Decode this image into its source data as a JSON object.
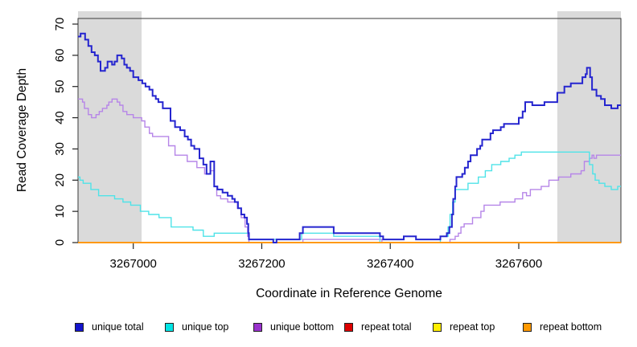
{
  "figure": {
    "y_axis_title": "Read Coverage Depth",
    "x_axis_title": "Coordinate in Reference Genome"
  },
  "chart_data": {
    "type": "line",
    "subtype": "step",
    "title": "",
    "xlabel": "Coordinate in Reference Genome",
    "ylabel": "Read Coverage Depth",
    "xlim": [
      3266914,
      3267759
    ],
    "ylim": [
      0,
      71.8
    ],
    "x_ticks": [
      3267000,
      3267200,
      3267400,
      3267600
    ],
    "y_ticks": [
      0,
      10,
      20,
      30,
      40,
      50,
      60,
      70
    ],
    "grid": false,
    "legend_position": "bottom",
    "shaded_regions": [
      {
        "x0": 3266914,
        "x1": 3267013,
        "color": "#DADADA"
      },
      {
        "x0": 3267660,
        "x1": 3267759,
        "color": "#DADADA"
      }
    ],
    "series": [
      {
        "name": "unique total",
        "color": "#1414CC",
        "line_color": "#2525CF",
        "line_width": 2,
        "draw_order": 6,
        "values": [
          [
            3266914,
            66
          ],
          [
            3266918,
            67
          ],
          [
            3266925,
            65
          ],
          [
            3266930,
            63
          ],
          [
            3266935,
            61
          ],
          [
            3266940,
            60
          ],
          [
            3266945,
            58
          ],
          [
            3266949,
            55
          ],
          [
            3266956,
            56
          ],
          [
            3266960,
            58
          ],
          [
            3266967,
            57
          ],
          [
            3266971,
            58
          ],
          [
            3266975,
            60
          ],
          [
            3266982,
            59
          ],
          [
            3266986,
            57
          ],
          [
            3266990,
            56
          ],
          [
            3266995,
            55
          ],
          [
            3267000,
            53
          ],
          [
            3267008,
            52
          ],
          [
            3267014,
            51
          ],
          [
            3267019,
            50
          ],
          [
            3267025,
            49
          ],
          [
            3267030,
            47
          ],
          [
            3267035,
            46
          ],
          [
            3267039,
            45
          ],
          [
            3267046,
            43
          ],
          [
            3267058,
            39
          ],
          [
            3267065,
            37
          ],
          [
            3267073,
            36
          ],
          [
            3267080,
            34
          ],
          [
            3267085,
            33
          ],
          [
            3267090,
            31
          ],
          [
            3267095,
            30
          ],
          [
            3267103,
            27
          ],
          [
            3267109,
            25
          ],
          [
            3267114,
            22
          ],
          [
            3267120,
            26
          ],
          [
            3267126,
            18
          ],
          [
            3267131,
            17
          ],
          [
            3267139,
            16
          ],
          [
            3267147,
            15
          ],
          [
            3267154,
            14
          ],
          [
            3267158,
            13
          ],
          [
            3267163,
            11
          ],
          [
            3267168,
            9
          ],
          [
            3267173,
            8
          ],
          [
            3267177,
            6
          ],
          [
            3267179,
            3
          ],
          [
            3267180,
            1
          ],
          [
            3267218,
            0
          ],
          [
            3267223,
            1
          ],
          [
            3267259,
            3
          ],
          [
            3267264,
            5
          ],
          [
            3267312,
            3
          ],
          [
            3267384,
            2
          ],
          [
            3267389,
            1
          ],
          [
            3267421,
            2
          ],
          [
            3267440,
            1
          ],
          [
            3267478,
            2
          ],
          [
            3267488,
            3
          ],
          [
            3267492,
            5
          ],
          [
            3267496,
            9
          ],
          [
            3267498,
            14
          ],
          [
            3267501,
            18
          ],
          [
            3267503,
            21
          ],
          [
            3267512,
            22
          ],
          [
            3267516,
            24
          ],
          [
            3267521,
            26
          ],
          [
            3267525,
            28
          ],
          [
            3267535,
            30
          ],
          [
            3267540,
            31
          ],
          [
            3267543,
            33
          ],
          [
            3267556,
            35
          ],
          [
            3267560,
            36
          ],
          [
            3267572,
            37
          ],
          [
            3267577,
            38
          ],
          [
            3267600,
            40
          ],
          [
            3267606,
            42
          ],
          [
            3267610,
            45
          ],
          [
            3267621,
            44
          ],
          [
            3267640,
            45
          ],
          [
            3267660,
            48
          ],
          [
            3267671,
            50
          ],
          [
            3267681,
            51
          ],
          [
            3267699,
            53
          ],
          [
            3267704,
            54
          ],
          [
            3267706,
            56
          ],
          [
            3267711,
            53
          ],
          [
            3267714,
            49
          ],
          [
            3267721,
            47
          ],
          [
            3267728,
            46
          ],
          [
            3267734,
            44
          ],
          [
            3267744,
            43
          ],
          [
            3267754,
            44
          ],
          [
            3267759,
            44
          ]
        ]
      },
      {
        "name": "unique top",
        "color": "#00E5E5",
        "line_color": "#4FE3E8",
        "line_width": 1.4,
        "draw_order": 4,
        "values": [
          [
            3266914,
            21
          ],
          [
            3266917,
            20
          ],
          [
            3266922,
            19
          ],
          [
            3266934,
            17
          ],
          [
            3266946,
            15
          ],
          [
            3266971,
            14
          ],
          [
            3266984,
            13
          ],
          [
            3266996,
            12
          ],
          [
            3267011,
            10
          ],
          [
            3267024,
            9
          ],
          [
            3267040,
            8
          ],
          [
            3267059,
            5
          ],
          [
            3267093,
            4
          ],
          [
            3267109,
            2
          ],
          [
            3267126,
            3
          ],
          [
            3267180,
            1
          ],
          [
            3267262,
            3
          ],
          [
            3267312,
            2
          ],
          [
            3267384,
            0
          ],
          [
            3267478,
            2
          ],
          [
            3267490,
            5
          ],
          [
            3267493,
            9
          ],
          [
            3267497,
            13
          ],
          [
            3267501,
            17
          ],
          [
            3267521,
            19
          ],
          [
            3267537,
            21
          ],
          [
            3267548,
            23
          ],
          [
            3267558,
            25
          ],
          [
            3267572,
            26
          ],
          [
            3267585,
            27
          ],
          [
            3267594,
            28
          ],
          [
            3267604,
            29
          ],
          [
            3267710,
            25
          ],
          [
            3267715,
            22
          ],
          [
            3267719,
            20
          ],
          [
            3267725,
            19
          ],
          [
            3267734,
            18
          ],
          [
            3267744,
            17
          ],
          [
            3267754,
            18
          ],
          [
            3267759,
            18
          ]
        ]
      },
      {
        "name": "unique bottom",
        "color": "#9932CC",
        "line_color": "#B685E8",
        "line_width": 1.4,
        "draw_order": 3,
        "values": [
          [
            3266914,
            46
          ],
          [
            3266921,
            45
          ],
          [
            3266924,
            43
          ],
          [
            3266930,
            41
          ],
          [
            3266935,
            40
          ],
          [
            3266942,
            41
          ],
          [
            3266947,
            42
          ],
          [
            3266952,
            43
          ],
          [
            3266959,
            44
          ],
          [
            3266962,
            45
          ],
          [
            3266967,
            46
          ],
          [
            3266975,
            45
          ],
          [
            3266979,
            44
          ],
          [
            3266984,
            42
          ],
          [
            3266990,
            41
          ],
          [
            3267000,
            40
          ],
          [
            3267013,
            39
          ],
          [
            3267018,
            37
          ],
          [
            3267025,
            35
          ],
          [
            3267030,
            34
          ],
          [
            3267055,
            31
          ],
          [
            3267065,
            28
          ],
          [
            3267084,
            26
          ],
          [
            3267099,
            24
          ],
          [
            3267111,
            22
          ],
          [
            3267120,
            23
          ],
          [
            3267126,
            18
          ],
          [
            3267130,
            15
          ],
          [
            3267136,
            14
          ],
          [
            3267147,
            13
          ],
          [
            3267162,
            11
          ],
          [
            3267168,
            8
          ],
          [
            3267174,
            5
          ],
          [
            3267178,
            2
          ],
          [
            3267180,
            0
          ],
          [
            3267264,
            1
          ],
          [
            3267387,
            0
          ],
          [
            3267493,
            1
          ],
          [
            3267501,
            2
          ],
          [
            3267506,
            3
          ],
          [
            3267510,
            5
          ],
          [
            3267515,
            6
          ],
          [
            3267528,
            8
          ],
          [
            3267541,
            10
          ],
          [
            3267546,
            12
          ],
          [
            3267571,
            13
          ],
          [
            3267594,
            14
          ],
          [
            3267606,
            16
          ],
          [
            3267612,
            15
          ],
          [
            3267618,
            17
          ],
          [
            3267635,
            18
          ],
          [
            3267647,
            20
          ],
          [
            3267662,
            21
          ],
          [
            3267681,
            22
          ],
          [
            3267697,
            23
          ],
          [
            3267702,
            26
          ],
          [
            3267710,
            27
          ],
          [
            3267714,
            28
          ],
          [
            3267717,
            27
          ],
          [
            3267721,
            28
          ],
          [
            3267759,
            28
          ]
        ]
      },
      {
        "name": "repeat total",
        "color": "#DD0000",
        "line_color": "#DD2222",
        "line_width": 1.4,
        "draw_order": 1,
        "values": [
          [
            3266914,
            0
          ],
          [
            3267759,
            0
          ]
        ]
      },
      {
        "name": "repeat top",
        "color": "#FFEE00",
        "line_color": "#FFEE00",
        "line_width": 1.4,
        "draw_order": 2,
        "values": [
          [
            3266914,
            0
          ],
          [
            3267759,
            0
          ]
        ]
      },
      {
        "name": "repeat bottom",
        "color": "#FF9900",
        "line_color": "#FF9911",
        "line_width": 2,
        "draw_order": 5,
        "values": [
          [
            3266914,
            0
          ],
          [
            3267759,
            0
          ]
        ]
      }
    ]
  }
}
